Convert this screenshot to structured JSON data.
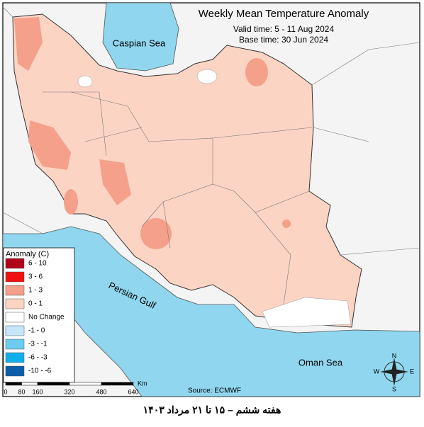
{
  "title": "Weekly Mean Temperature Anomaly",
  "valid_time": "Valid time: 5 - 11 Aug 2024",
  "base_time": "Base time: 30 Jun 2024",
  "labels": {
    "caspian": "Caspian Sea",
    "gulf": "Persian Gulf",
    "oman": "Oman Sea"
  },
  "legend": {
    "title": "Anomaly (C)",
    "items": [
      {
        "label": "6 - 10",
        "color": "#b0001a"
      },
      {
        "label": "3 - 6",
        "color": "#f01010"
      },
      {
        "label": "1 - 3",
        "color": "#f5a08a"
      },
      {
        "label": "0 - 1",
        "color": "#fcd4c4"
      },
      {
        "label": "No Change",
        "color": "#ffffff"
      },
      {
        "label": "-1 - 0",
        "color": "#c4e8fa"
      },
      {
        "label": "-3 - -1",
        "color": "#6ccdf0"
      },
      {
        "label": "-6 - -3",
        "color": "#10aee8"
      },
      {
        "label": "-10 - -6",
        "color": "#0a5ea8"
      }
    ]
  },
  "scale": {
    "ticks": [
      0,
      80,
      160,
      320,
      480,
      640
    ],
    "unit": "Km"
  },
  "source": "Source: ECMWF",
  "compass": {
    "n": "N",
    "s": "S",
    "e": "E",
    "w": "W"
  },
  "caption": "هفته ششم – ۱۵ تا ۲۱ مرداد ۱۴۰۳"
}
